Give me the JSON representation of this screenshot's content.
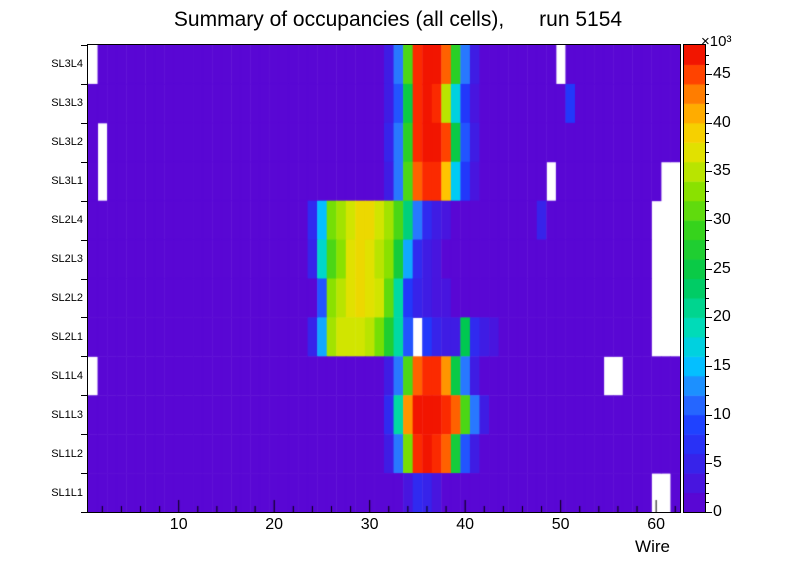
{
  "chart_data": {
    "type": "heatmap",
    "title": "Summary of occupancies (all cells),      run 5154",
    "xlabel": "Wire",
    "x_range": [
      0.5,
      62.5
    ],
    "n_wires": 62,
    "x_ticks": [
      10,
      20,
      30,
      40,
      50,
      60
    ],
    "x_minor_step": 2,
    "z_max": 48,
    "z_ticks": [
      0,
      5,
      10,
      15,
      20,
      25,
      30,
      35,
      40,
      45
    ],
    "z_unit_multiplier": "×10³",
    "row_order": "top-to-bottom",
    "values_unit": "1e3",
    "palette": [
      {
        "pos": 0.0,
        "color": "#6200CE"
      },
      {
        "pos": 0.09,
        "color": "#3C1EE6"
      },
      {
        "pos": 0.18,
        "color": "#1E3CFF"
      },
      {
        "pos": 0.25,
        "color": "#2878FF"
      },
      {
        "pos": 0.32,
        "color": "#00C8FF"
      },
      {
        "pos": 0.4,
        "color": "#00DCB4"
      },
      {
        "pos": 0.5,
        "color": "#00C850"
      },
      {
        "pos": 0.6,
        "color": "#32D21E"
      },
      {
        "pos": 0.68,
        "color": "#82E100"
      },
      {
        "pos": 0.76,
        "color": "#DCE600"
      },
      {
        "pos": 0.83,
        "color": "#FFC800"
      },
      {
        "pos": 0.9,
        "color": "#FF7800"
      },
      {
        "pos": 0.95,
        "color": "#FF3200"
      },
      {
        "pos": 1.0,
        "color": "#E80000"
      }
    ],
    "rows": [
      {
        "label": "SL3L4",
        "base": 1,
        "empty": [
          1,
          50
        ],
        "cells": {
          "32": 4,
          "33": 12,
          "34": 30,
          "35": 46,
          "36": 47,
          "37": 47,
          "38": 44,
          "39": 28,
          "40": 12,
          "41": 4
        }
      },
      {
        "label": "SL3L3",
        "base": 1,
        "empty": [],
        "cells": {
          "32": 4,
          "33": 10,
          "34": 25,
          "35": 46,
          "36": 47,
          "37": 46,
          "38": 35,
          "39": 17,
          "40": 8,
          "41": 3,
          "51": 8
        }
      },
      {
        "label": "SL3L2",
        "base": 1,
        "empty": [
          2
        ],
        "cells": {
          "32": 5,
          "33": 12,
          "34": 28,
          "35": 46,
          "36": 47,
          "37": 47,
          "38": 45,
          "39": 25,
          "40": 10,
          "41": 4
        }
      },
      {
        "label": "SL3L1",
        "base": 1,
        "empty": [
          2,
          49,
          61,
          62
        ],
        "cells": {
          "32": 4,
          "33": 12,
          "34": 30,
          "35": 44,
          "36": 46,
          "37": 46,
          "38": 40,
          "39": 16,
          "40": 8,
          "41": 3
        }
      },
      {
        "label": "SL2L4",
        "base": 1,
        "empty": [
          60,
          61,
          62
        ],
        "cells": {
          "24": 6,
          "25": 15,
          "26": 32,
          "27": 34,
          "28": 36,
          "29": 38,
          "30": 38,
          "31": 36,
          "32": 34,
          "33": 30,
          "34": 22,
          "35": 12,
          "36": 6,
          "37": 4,
          "38": 3,
          "48": 5
        }
      },
      {
        "label": "SL2L3",
        "base": 1,
        "empty": [
          60,
          61,
          62
        ],
        "cells": {
          "24": 5,
          "25": 18,
          "26": 30,
          "27": 33,
          "28": 37,
          "29": 38,
          "30": 37,
          "31": 35,
          "32": 33,
          "33": 26,
          "34": 14,
          "35": 6,
          "36": 4,
          "37": 3
        }
      },
      {
        "label": "SL2L2",
        "base": 1,
        "empty": [
          60,
          61,
          62
        ],
        "cells": {
          "25": 10,
          "26": 33,
          "27": 35,
          "28": 37,
          "29": 38,
          "30": 37,
          "31": 36,
          "32": 31,
          "33": 20,
          "34": 8,
          "35": 5,
          "36": 4,
          "37": 3,
          "38": 3
        }
      },
      {
        "label": "SL2L1",
        "base": 1,
        "empty": [
          35,
          60,
          61,
          62
        ],
        "cells": {
          "24": 5,
          "25": 14,
          "26": 34,
          "27": 36,
          "28": 36,
          "29": 36,
          "30": 35,
          "31": 32,
          "32": 27,
          "33": 20,
          "34": 10,
          "36": 8,
          "37": 5,
          "38": 4,
          "39": 4,
          "40": 24,
          "41": 6,
          "42": 4,
          "43": 3
        }
      },
      {
        "label": "SL1L4",
        "base": 1,
        "empty": [
          1,
          55,
          56
        ],
        "cells": {
          "32": 4,
          "33": 12,
          "34": 30,
          "35": 44,
          "36": 46,
          "37": 46,
          "38": 42,
          "39": 25,
          "40": 12,
          "41": 4
        }
      },
      {
        "label": "SL1L3",
        "base": 1,
        "empty": [],
        "cells": {
          "32": 6,
          "33": 20,
          "34": 42,
          "35": 47,
          "36": 47,
          "37": 47,
          "38": 46,
          "39": 44,
          "40": 30,
          "41": 12,
          "42": 4
        }
      },
      {
        "label": "SL1L2",
        "base": 1,
        "empty": [],
        "cells": {
          "32": 4,
          "33": 12,
          "34": 32,
          "35": 46,
          "36": 47,
          "37": 46,
          "38": 44,
          "39": 26,
          "40": 10,
          "41": 4
        }
      },
      {
        "label": "SL1L1",
        "base": 1,
        "empty": [
          60,
          61
        ],
        "cells": {
          "34": 3,
          "35": 6,
          "36": 5,
          "37": 3
        }
      }
    ]
  }
}
